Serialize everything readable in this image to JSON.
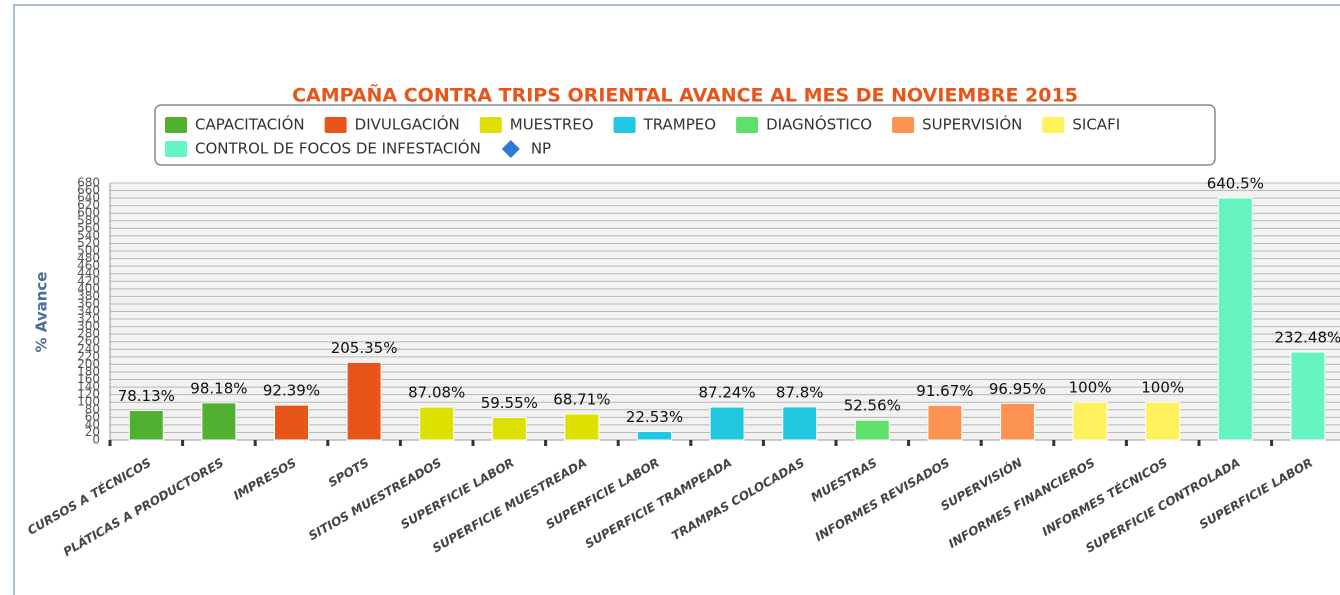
{
  "chart_data": {
    "type": "bar",
    "title": "CAMPAÑA CONTRA TRIPS ORIENTAL AVANCE AL MES DE NOVIEMBRE 2015",
    "y_label": "% Avance",
    "categories": [
      "CURSOS A TÉCNICOS",
      "PLÁTICAS A PRODUCTORES",
      "IMPRESOS",
      "SPOTS",
      "SITIOS MUESTREADOS",
      "SUPERFICIE LABOR",
      "SUPERFICIE MUESTREADA",
      "SUPERFICIE LABOR",
      "SUPERFICIE TRAMPEADA",
      "TRAMPAS COLOCADAS",
      "MUESTRAS",
      "INFORMES REVISADOS",
      "SUPERVISIÓN",
      "INFORMES FINANCIEROS",
      "INFORMES TÉCNICOS",
      "SUPERFICIE CONTROLADA",
      "SUPERFICIE LABOR"
    ],
    "series": [
      {
        "name": "CAPACITACIÓN",
        "color": "#52b031",
        "values": [
          78.13,
          98.18,
          null,
          null,
          null,
          null,
          null,
          null,
          null,
          null,
          null,
          null,
          null,
          null,
          null,
          null,
          null
        ],
        "value_labels": [
          "78.13%",
          "98.18%",
          null,
          null,
          null,
          null,
          null,
          null,
          null,
          null,
          null,
          null,
          null,
          null,
          null,
          null,
          null
        ]
      },
      {
        "name": "DIVULGACIÓN",
        "color": "#e8551a",
        "values": [
          null,
          null,
          92.39,
          205.35,
          null,
          null,
          null,
          null,
          null,
          null,
          null,
          null,
          null,
          null,
          null,
          null,
          null
        ],
        "value_labels": [
          null,
          null,
          "92.39%",
          "205.35%",
          null,
          null,
          null,
          null,
          null,
          null,
          null,
          null,
          null,
          null,
          null,
          null,
          null
        ]
      },
      {
        "name": "MUESTREO",
        "color": "#dde000",
        "values": [
          null,
          null,
          null,
          null,
          87.08,
          59.55,
          68.71,
          null,
          null,
          null,
          null,
          null,
          null,
          null,
          null,
          null,
          null
        ],
        "value_labels": [
          null,
          null,
          null,
          null,
          "87.08%",
          "59.55%",
          "68.71%",
          null,
          null,
          null,
          null,
          null,
          null,
          null,
          null,
          null,
          null
        ]
      },
      {
        "name": "TRAMPEO",
        "color": "#22c8e2",
        "values": [
          null,
          null,
          null,
          null,
          null,
          null,
          null,
          22.53,
          87.24,
          87.8,
          null,
          null,
          null,
          null,
          null,
          null,
          null
        ],
        "value_labels": [
          null,
          null,
          null,
          null,
          null,
          null,
          null,
          "22.53%",
          "87.24%",
          "87.8%",
          null,
          null,
          null,
          null,
          null,
          null,
          null
        ]
      },
      {
        "name": "DIAGNÓSTICO",
        "color": "#5ee06a",
        "values": [
          null,
          null,
          null,
          null,
          null,
          null,
          null,
          null,
          null,
          null,
          52.56,
          null,
          null,
          null,
          null,
          null,
          null
        ],
        "value_labels": [
          null,
          null,
          null,
          null,
          null,
          null,
          null,
          null,
          null,
          null,
          "52.56%",
          null,
          null,
          null,
          null,
          null,
          null
        ]
      },
      {
        "name": "SUPERVISIÓN",
        "color": "#fc9352",
        "values": [
          null,
          null,
          null,
          null,
          null,
          null,
          null,
          null,
          null,
          null,
          null,
          91.67,
          96.95,
          null,
          null,
          null,
          null
        ],
        "value_labels": [
          null,
          null,
          null,
          null,
          null,
          null,
          null,
          null,
          null,
          null,
          null,
          "91.67%",
          "96.95%",
          null,
          null,
          null,
          null
        ]
      },
      {
        "name": "SICAFI",
        "color": "#fff15c",
        "values": [
          null,
          null,
          null,
          null,
          null,
          null,
          null,
          null,
          null,
          null,
          null,
          null,
          null,
          100,
          100,
          null,
          null
        ],
        "value_labels": [
          null,
          null,
          null,
          null,
          null,
          null,
          null,
          null,
          null,
          null,
          null,
          null,
          null,
          "100%",
          "100%",
          null,
          null
        ]
      },
      {
        "name": "CONTROL DE FOCOS DE INFESTACIÓN",
        "color": "#66f5c0",
        "values": [
          null,
          null,
          null,
          null,
          null,
          null,
          null,
          null,
          null,
          null,
          null,
          null,
          null,
          null,
          null,
          640.5,
          232.48
        ],
        "value_labels": [
          null,
          null,
          null,
          null,
          null,
          null,
          null,
          null,
          null,
          null,
          null,
          null,
          null,
          null,
          null,
          "640.5%",
          "232.48%"
        ]
      },
      {
        "name": "NP",
        "color": "#2b7bd6",
        "marker": "diamond",
        "values": [
          null,
          null,
          null,
          null,
          null,
          null,
          null,
          null,
          null,
          null,
          null,
          null,
          null,
          null,
          null,
          null,
          null
        ]
      }
    ],
    "ylim": [
      0,
      680
    ],
    "yticks": [
      0,
      20,
      40,
      60,
      80,
      100,
      120,
      140,
      160,
      180,
      200,
      220,
      240,
      260,
      280,
      300,
      320,
      340,
      360,
      380,
      400,
      420,
      440,
      460,
      480,
      500,
      520,
      540,
      560,
      580,
      600,
      620,
      640,
      660,
      680
    ],
    "grid": true
  }
}
